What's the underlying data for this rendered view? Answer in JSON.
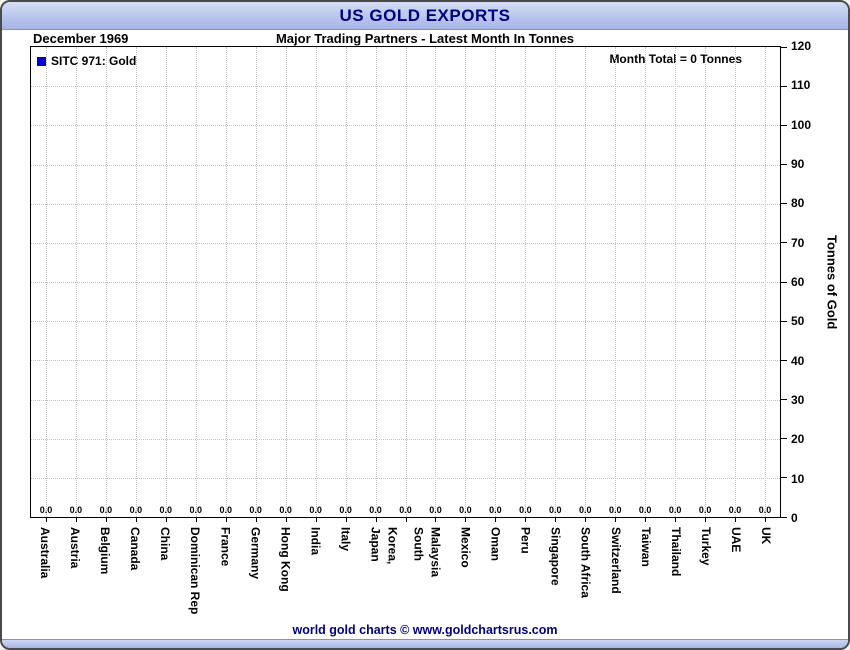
{
  "header": {
    "title": "US GOLD EXPORTS"
  },
  "subtitle": {
    "date": "December 1969",
    "text": "Major Trading Partners - Latest Month In Tonnes"
  },
  "legend": {
    "label": "SITC 971: Gold",
    "marker_color": "#0000cc"
  },
  "month_total_label": "Month Total = 0 Tonnes",
  "footer_credit": "world gold charts © www.goldchartsrus.com",
  "colors": {
    "accent_navy": "#000080",
    "grid": "#c0c0c0",
    "legend_marker": "#0000cc",
    "header_gradient_top": "#d6def5",
    "header_gradient_bottom": "#a6b6e6"
  },
  "chart_data": {
    "type": "bar",
    "title": "US GOLD EXPORTS",
    "subtitle": "Major Trading Partners - Latest Month In Tonnes",
    "period": "December 1969",
    "series_name": "SITC 971: Gold",
    "month_total_tonnes": 0,
    "categories": [
      "Australia",
      "Austria",
      "Belgium",
      "Canada",
      "China",
      "Dominican Rep",
      "France",
      "Germany",
      "Hong Kong",
      "India",
      "Italy",
      "Japan",
      "Korea,\nSouth",
      "Malaysia",
      "Mexico",
      "Oman",
      "Peru",
      "Singapore",
      "South Africa",
      "Switzerland",
      "Taiwan",
      "Thailand",
      "Turkey",
      "UAE",
      "UK"
    ],
    "values": [
      0,
      0,
      0,
      0,
      0,
      0,
      0,
      0,
      0,
      0,
      0,
      0,
      0,
      0,
      0,
      0,
      0,
      0,
      0,
      0,
      0,
      0,
      0,
      0,
      0
    ],
    "value_label_format": "0.0",
    "xlabel": "",
    "ylabel": "Tonnes of Gold",
    "ylim": [
      0,
      120
    ],
    "ytick_step": 10,
    "grid": true,
    "legend_position": "top-left"
  }
}
